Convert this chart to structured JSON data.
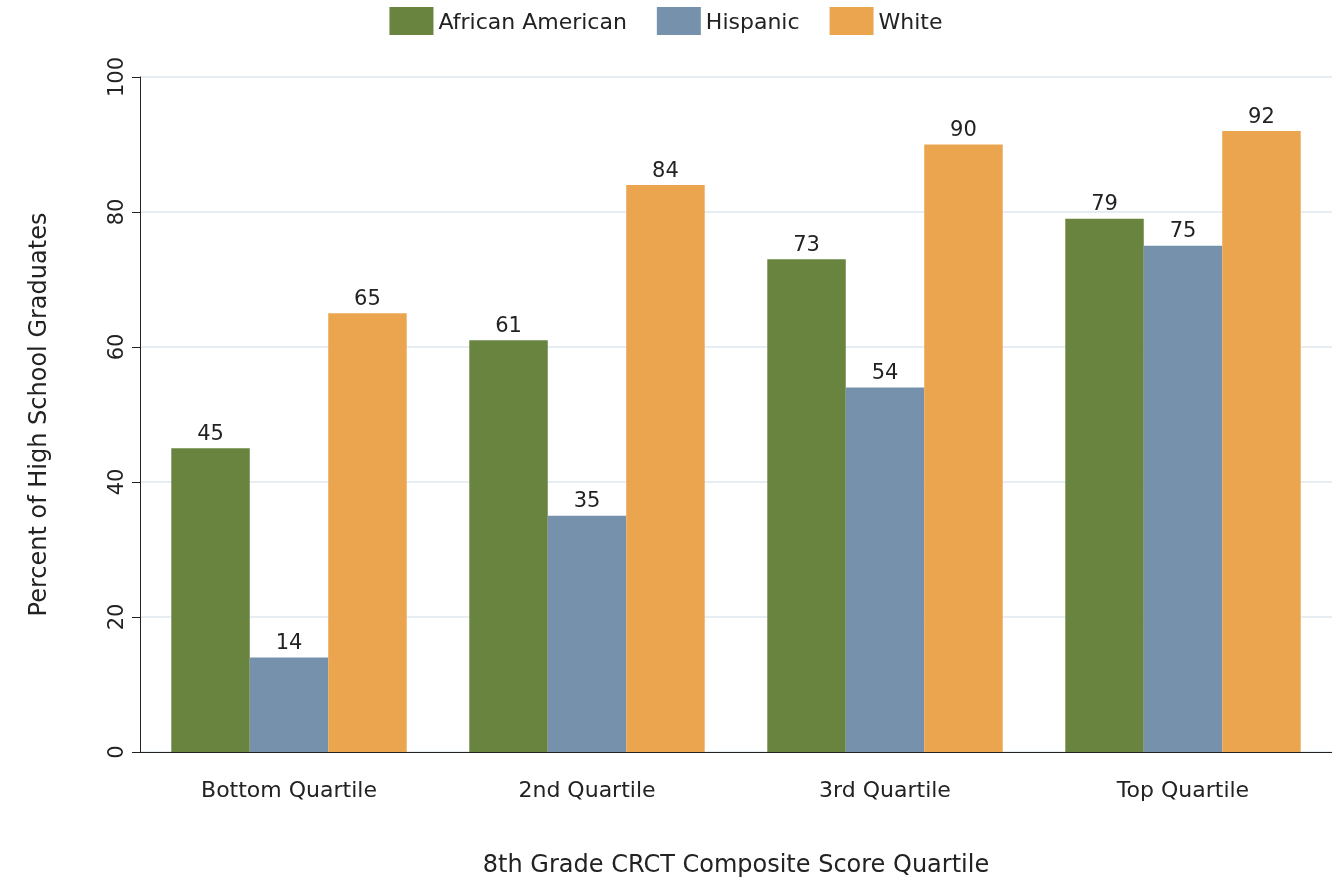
{
  "chart_data": {
    "type": "bar",
    "xlabel": "8th Grade CRCT Composite Score Quartile",
    "ylabel": "Percent of High School Graduates",
    "categories": [
      "Bottom Quartile",
      "2nd Quartile",
      "3rd Quartile",
      "Top Quartile"
    ],
    "series": [
      {
        "name": "African American",
        "color": "#68843f",
        "values": [
          45,
          61,
          73,
          79
        ]
      },
      {
        "name": "Hispanic",
        "color": "#7691ab",
        "values": [
          14,
          35,
          54,
          75
        ]
      },
      {
        "name": "White",
        "color": "#eba54f",
        "values": [
          65,
          84,
          90,
          92
        ]
      }
    ],
    "ylim": [
      0,
      100
    ],
    "yticks": [
      0,
      20,
      40,
      60,
      80,
      100
    ],
    "grid": "y",
    "legend": "top",
    "data_labels": true
  }
}
